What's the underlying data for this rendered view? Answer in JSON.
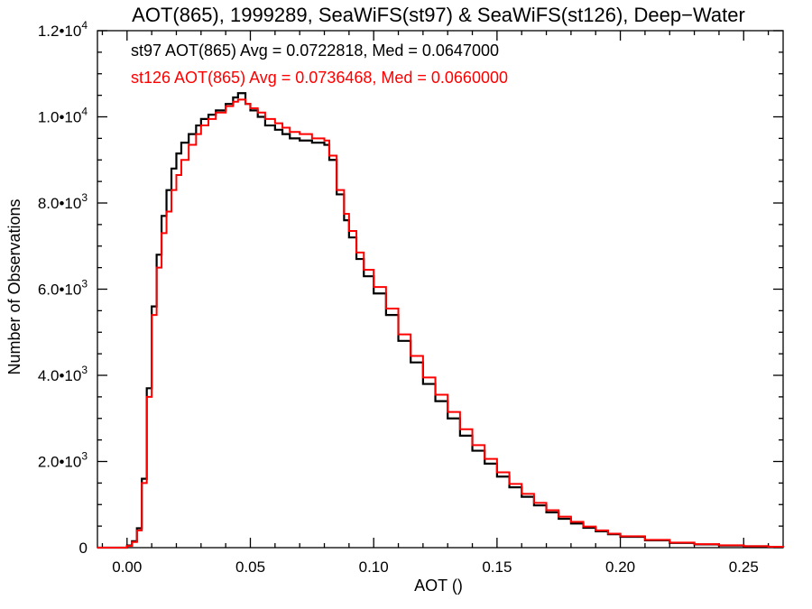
{
  "chart_data": {
    "type": "line",
    "title": "AOT(865), 1999289, SeaWiFS(st97) & SeaWiFS(st126), Deep−Water",
    "xlabel": "AOT ()",
    "ylabel": "Number of Observations",
    "xlim": [
      -0.012,
      0.266
    ],
    "ylim": [
      0,
      12000
    ],
    "x_ticks": [
      0.0,
      0.05,
      0.1,
      0.15,
      0.2,
      0.25
    ],
    "x_tick_labels": [
      "0.00",
      "0.05",
      "0.10",
      "0.15",
      "0.20",
      "0.25"
    ],
    "y_ticks": [
      {
        "value": 0,
        "mantissa": "0",
        "exponent": ""
      },
      {
        "value": 2000,
        "mantissa": "2.0•10",
        "exponent": "3"
      },
      {
        "value": 4000,
        "mantissa": "4.0•10",
        "exponent": "3"
      },
      {
        "value": 6000,
        "mantissa": "6.0•10",
        "exponent": "3"
      },
      {
        "value": 8000,
        "mantissa": "8.0•10",
        "exponent": "3"
      },
      {
        "value": 10000,
        "mantissa": "1.0•10",
        "exponent": "4"
      },
      {
        "value": 12000,
        "mantissa": "1.2•10",
        "exponent": "4"
      }
    ],
    "grid": false,
    "series": [
      {
        "name": "st97",
        "color": "#000000",
        "annotation": "st97 AOT(865) Avg = 0.0722818, Med = 0.0647000",
        "x": [
          -0.012,
          -0.004,
          0.0,
          0.002,
          0.004,
          0.006,
          0.008,
          0.01,
          0.012,
          0.014,
          0.016,
          0.018,
          0.02,
          0.022,
          0.025,
          0.028,
          0.03,
          0.033,
          0.036,
          0.04,
          0.043,
          0.045,
          0.048,
          0.05,
          0.053,
          0.056,
          0.06,
          0.063,
          0.066,
          0.07,
          0.075,
          0.08,
          0.082,
          0.085,
          0.088,
          0.09,
          0.093,
          0.096,
          0.1,
          0.105,
          0.11,
          0.115,
          0.12,
          0.125,
          0.13,
          0.135,
          0.14,
          0.145,
          0.15,
          0.155,
          0.16,
          0.165,
          0.17,
          0.175,
          0.18,
          0.185,
          0.19,
          0.195,
          0.2,
          0.21,
          0.22,
          0.23,
          0.24,
          0.25,
          0.26,
          0.266
        ],
        "y": [
          0,
          0,
          50,
          150,
          450,
          1600,
          3700,
          5600,
          6800,
          7700,
          8300,
          8800,
          9150,
          9400,
          9600,
          9800,
          9950,
          10050,
          10150,
          10300,
          10450,
          10550,
          10300,
          10150,
          10000,
          9800,
          9700,
          9600,
          9500,
          9450,
          9400,
          9350,
          9000,
          8200,
          7600,
          7200,
          6700,
          6300,
          5900,
          5400,
          4800,
          4300,
          3800,
          3400,
          3000,
          2600,
          2250,
          1950,
          1650,
          1400,
          1180,
          980,
          820,
          670,
          560,
          460,
          380,
          310,
          250,
          170,
          110,
          75,
          50,
          32,
          18,
          10
        ]
      },
      {
        "name": "st126",
        "color": "#ff0000",
        "annotation": "st126 AOT(865) Avg = 0.0736468, Med = 0.0660000",
        "x": [
          -0.012,
          -0.004,
          0.0,
          0.002,
          0.004,
          0.006,
          0.008,
          0.01,
          0.012,
          0.014,
          0.016,
          0.018,
          0.02,
          0.022,
          0.025,
          0.028,
          0.03,
          0.033,
          0.036,
          0.04,
          0.043,
          0.045,
          0.048,
          0.05,
          0.053,
          0.056,
          0.06,
          0.063,
          0.066,
          0.07,
          0.075,
          0.08,
          0.082,
          0.085,
          0.088,
          0.09,
          0.093,
          0.096,
          0.1,
          0.105,
          0.11,
          0.115,
          0.12,
          0.125,
          0.13,
          0.135,
          0.14,
          0.145,
          0.15,
          0.155,
          0.16,
          0.165,
          0.17,
          0.175,
          0.18,
          0.185,
          0.19,
          0.195,
          0.2,
          0.21,
          0.22,
          0.23,
          0.24,
          0.25,
          0.26,
          0.266
        ],
        "y": [
          0,
          0,
          40,
          130,
          400,
          1500,
          3500,
          5400,
          6500,
          7300,
          7800,
          8300,
          8650,
          9000,
          9350,
          9600,
          9800,
          9950,
          10100,
          10250,
          10350,
          10400,
          10300,
          10200,
          10100,
          9950,
          9850,
          9750,
          9650,
          9600,
          9500,
          9450,
          9100,
          8300,
          7750,
          7350,
          6850,
          6450,
          6050,
          5550,
          4950,
          4450,
          3950,
          3550,
          3150,
          2750,
          2380,
          2060,
          1750,
          1480,
          1250,
          1040,
          870,
          720,
          600,
          490,
          400,
          325,
          265,
          180,
          118,
          80,
          54,
          35,
          20,
          11
        ]
      }
    ]
  }
}
